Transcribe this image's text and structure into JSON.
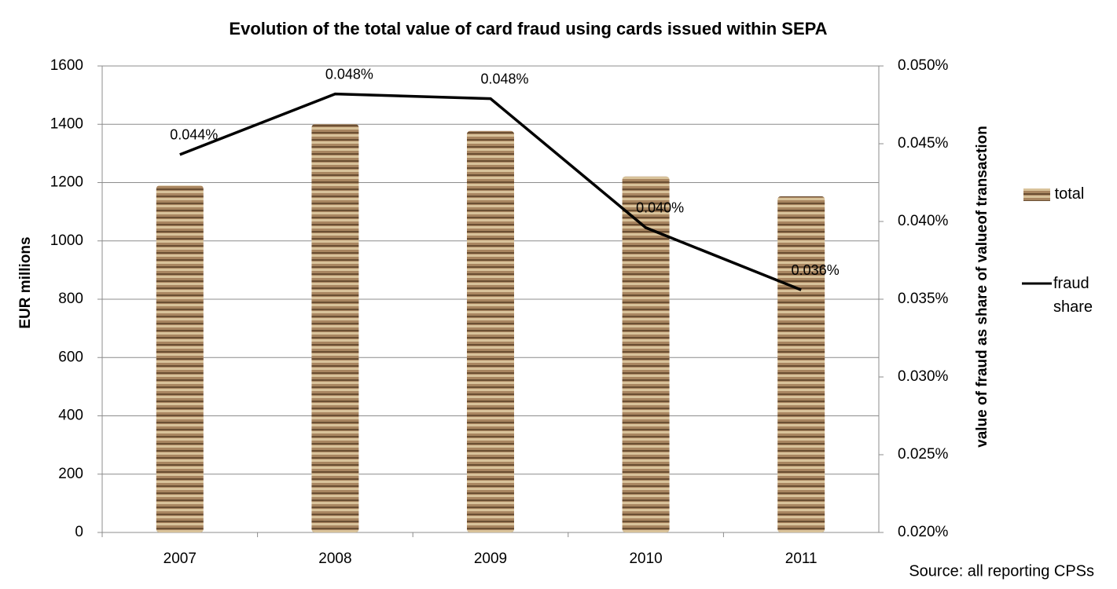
{
  "chart_data": {
    "type": "bar",
    "title": "Evolution of the total value of card fraud using cards issued within SEPA",
    "y_label": "EUR millions",
    "y2_label": "value of fraud as share of valueof transaction",
    "source": "Source: all reporting CPSs",
    "categories": [
      "2007",
      "2008",
      "2009",
      "2010",
      "2011"
    ],
    "series": [
      {
        "name": "total",
        "type": "bar",
        "color": "#9c7a52",
        "values": [
          1190,
          1400,
          1377,
          1221,
          1153
        ]
      },
      {
        "name": "fraud share",
        "type": "line",
        "axis": "y2",
        "color": "#000000",
        "values": [
          0.0443,
          0.0482,
          0.0479,
          0.0396,
          0.0356
        ],
        "value_labels": [
          "0.044%",
          "0.048%",
          "0.048%",
          "0.040%",
          "0.036%"
        ]
      }
    ],
    "ylim": [
      0,
      1600
    ],
    "yticks": [
      0,
      200,
      400,
      600,
      800,
      1000,
      1200,
      1400,
      1600
    ],
    "y2lim": [
      0.02,
      0.05
    ],
    "y2ticks": [
      {
        "value": 0.02,
        "label": "0.020%"
      },
      {
        "value": 0.025,
        "label": "0.025%"
      },
      {
        "value": 0.03,
        "label": "0.030%"
      },
      {
        "value": 0.035,
        "label": "0.035%"
      },
      {
        "value": 0.04,
        "label": "0.040%"
      },
      {
        "value": 0.045,
        "label": "0.045%"
      },
      {
        "value": 0.05,
        "label": "0.050%"
      }
    ],
    "grid": true,
    "legend": "right"
  }
}
